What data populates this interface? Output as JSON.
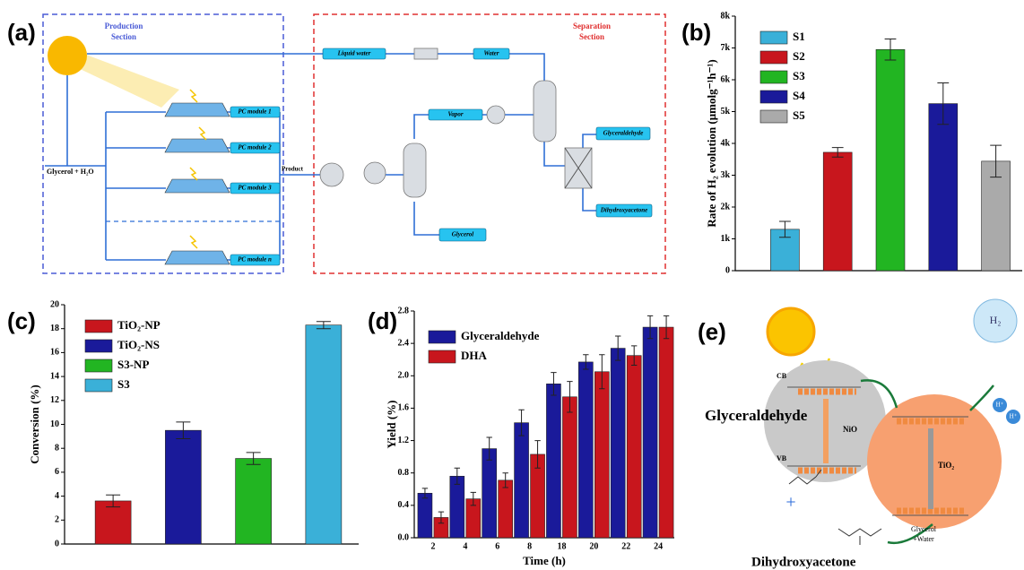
{
  "diagram_a": {
    "panel_label": "(a)",
    "production_title": [
      "Production",
      "Section"
    ],
    "separation_title": [
      "Separation",
      "Section"
    ],
    "liquid_water": "Liquid water",
    "water": "Water",
    "modules": [
      "PC module 1",
      "PC module 2",
      "PC module 3",
      "PC module n"
    ],
    "feed": "Glycerol + H₂O",
    "product": "Product",
    "vapor": "Vapor",
    "out_glyceraldehyde": "Glyceraldehyde",
    "out_dha": "Dihydroxyacetone",
    "out_glycerol": "Glycerol"
  },
  "chart_data": [
    {
      "type": "bar",
      "panel_label": "(b)",
      "ylabel": "Rate of H₂ evolution (μmolg⁻¹h⁻¹)",
      "categories": [
        "S1",
        "S2",
        "S3",
        "S4",
        "S5"
      ],
      "values": [
        1300,
        3720,
        6950,
        5250,
        3440
      ],
      "errors": [
        250,
        150,
        330,
        650,
        500
      ],
      "colors": [
        "#3ab0d8",
        "#c8161d",
        "#22b522",
        "#1a1a9a",
        "#aaaaaa"
      ],
      "ylim": [
        0,
        8000
      ],
      "yticks": [
        0,
        {
          "value": 1000,
          "label": "1k"
        },
        {
          "value": 2000,
          "label": "2k"
        },
        {
          "value": 3000,
          "label": "3k"
        },
        {
          "value": 4000,
          "label": "4k"
        },
        {
          "value": 5000,
          "label": "5k"
        },
        {
          "value": 6000,
          "label": "6k"
        },
        {
          "value": 7000,
          "label": "7k"
        },
        {
          "value": 8000,
          "label": "8k"
        }
      ],
      "legend": "upper left"
    },
    {
      "type": "bar",
      "panel_label": "(c)",
      "ylabel": "Conversion (%)",
      "categories": [
        "TiO₂-NP",
        "TiO₂-NS",
        "S3-NP",
        "S3"
      ],
      "values": [
        3.6,
        9.5,
        7.15,
        18.3
      ],
      "errors": [
        0.5,
        0.7,
        0.5,
        0.3
      ],
      "colors": [
        "#c8161d",
        "#1a1a9a",
        "#22b522",
        "#3ab0d8"
      ],
      "ylim": [
        0,
        20
      ],
      "yticks": [
        0,
        2,
        4,
        6,
        8,
        10,
        12,
        14,
        16,
        18,
        20
      ],
      "legend": "upper left"
    },
    {
      "type": "bar",
      "panel_label": "(d)",
      "ylabel": "Yield (%)",
      "xlabel": "Time (h)",
      "categories": [
        "2",
        "4",
        "6",
        "8",
        "18",
        "20",
        "22",
        "24"
      ],
      "series": [
        {
          "name": "Glyceraldehyde",
          "color": "#1a1a9a",
          "values": [
            0.55,
            0.76,
            1.1,
            1.42,
            1.9,
            2.17,
            2.34,
            2.6
          ],
          "errors": [
            0.06,
            0.1,
            0.14,
            0.16,
            0.14,
            0.09,
            0.15,
            0.14
          ]
        },
        {
          "name": "DHA",
          "color": "#c8161d",
          "values": [
            0.25,
            0.48,
            0.71,
            1.03,
            1.74,
            2.05,
            2.25,
            2.6
          ],
          "errors": [
            0.07,
            0.08,
            0.09,
            0.17,
            0.19,
            0.21,
            0.12,
            0.14
          ]
        }
      ],
      "ylim": [
        0,
        2.8
      ],
      "yticks": [
        {
          "value": 0,
          "label": "0.0"
        },
        0.4,
        0.8,
        1.2,
        1.6,
        {
          "value": 2,
          "label": "2.0"
        },
        2.4,
        2.8
      ],
      "legend": "upper left"
    }
  ],
  "diagram_e": {
    "panel_label": "(e)",
    "cb": "CB",
    "vb": "VB",
    "nio": "NiO",
    "tio2": "TiO₂",
    "h2": "H₂",
    "h_plus": [
      "H⁺",
      "H⁺"
    ],
    "glyceraldehyde": "Glyceraldehyde",
    "dha": "Dihydroxyacetone",
    "glycerol_water": [
      "Glycerol",
      "+Water"
    ],
    "plus": "+"
  }
}
